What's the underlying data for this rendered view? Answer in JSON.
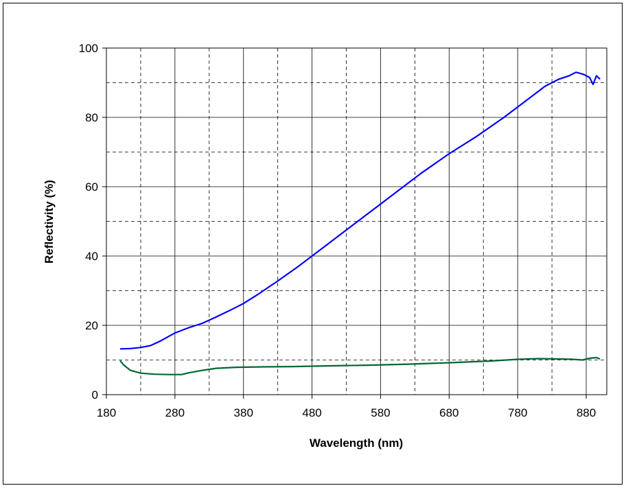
{
  "chart_data": {
    "type": "line",
    "title": "",
    "xlabel": "Wavelength (nm)",
    "ylabel": "Reflectivity (%)",
    "xlim": [
      180,
      910
    ],
    "ylim": [
      0,
      100
    ],
    "x_ticks": [
      180,
      280,
      380,
      480,
      580,
      680,
      780,
      880
    ],
    "x_minor_grid": [
      230,
      330,
      430,
      530,
      630,
      730,
      830
    ],
    "y_ticks": [
      0,
      20,
      40,
      60,
      80,
      100
    ],
    "y_minor_grid": [
      10,
      30,
      50,
      70,
      90
    ],
    "grid": true,
    "legend": "none",
    "series": [
      {
        "color": "#0000ff",
        "x": [
          200,
          215,
          230,
          245,
          260,
          280,
          300,
          320,
          340,
          360,
          380,
          400,
          430,
          460,
          480,
          500,
          530,
          560,
          580,
          610,
          640,
          680,
          720,
          760,
          780,
          800,
          820,
          840,
          855,
          865,
          875,
          885,
          890,
          895,
          900
        ],
        "y": [
          13.2,
          13.3,
          13.6,
          14.2,
          15.6,
          17.8,
          19.3,
          20.6,
          22.4,
          24.3,
          26.3,
          28.8,
          32.8,
          37.0,
          40.0,
          43.0,
          47.5,
          52.0,
          55.0,
          59.5,
          64.0,
          69.5,
          74.5,
          80.0,
          83.0,
          86.0,
          89.0,
          91.0,
          92.0,
          93.0,
          92.5,
          91.5,
          89.5,
          92.0,
          91.0
        ]
      },
      {
        "color": "#006633",
        "x": [
          200,
          205,
          215,
          230,
          250,
          270,
          290,
          300,
          320,
          340,
          370,
          400,
          450,
          500,
          560,
          620,
          680,
          740,
          780,
          810,
          840,
          860,
          875,
          885,
          895,
          900
        ],
        "y": [
          9.8,
          8.6,
          7.0,
          6.2,
          5.9,
          5.8,
          5.8,
          6.3,
          7.0,
          7.6,
          7.9,
          8.0,
          8.1,
          8.3,
          8.5,
          8.8,
          9.2,
          9.7,
          10.2,
          10.4,
          10.3,
          10.2,
          10.0,
          10.5,
          10.7,
          10.3
        ]
      }
    ]
  }
}
